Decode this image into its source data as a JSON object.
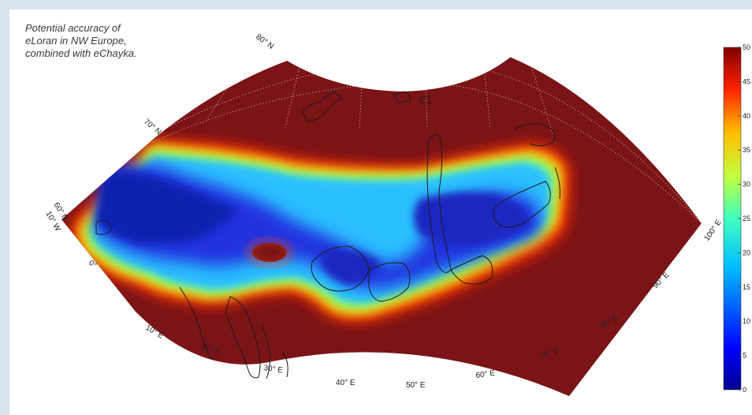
{
  "caption": {
    "line1": "Potential accuracy of",
    "line2": "eLoran in NW Europe,",
    "line3": "combined with eChayka."
  },
  "map": {
    "projection": "conic",
    "lat_labels": [
      "60° N",
      "70° N",
      "80° N"
    ],
    "lon_labels": [
      "10° W",
      "0°",
      "10° E",
      "20° E",
      "30° E",
      "40° E",
      "50° E",
      "60° E",
      "70° E",
      "80° E",
      "90° E",
      "100° E"
    ],
    "colormap": "jet",
    "background_color": "#7b1416"
  },
  "colorbar": {
    "ticks": [
      "0",
      "5",
      "10",
      "15",
      "20",
      "25",
      "30",
      "35",
      "40",
      "45",
      "50"
    ],
    "min": 0,
    "max": 50
  }
}
